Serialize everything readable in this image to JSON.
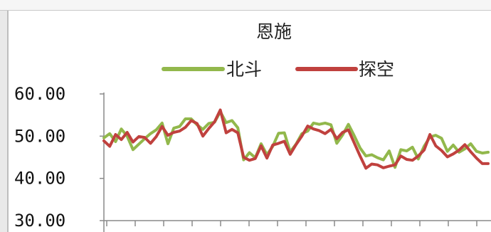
{
  "chart_data": {
    "type": "line",
    "title": "恩施",
    "xlabel": "",
    "ylabel": "",
    "ylim": [
      30,
      60
    ],
    "y_ticks": [
      "60.00",
      "50.00",
      "40.00",
      "30.00"
    ],
    "legend_position": "top",
    "grid": false,
    "series": [
      {
        "name": "北斗",
        "color": "#92b84c",
        "values": [
          49.6,
          50.6,
          48.7,
          51.7,
          50.0,
          46.8,
          48.1,
          49.4,
          50.6,
          51.5,
          53.1,
          48.2,
          51.9,
          52.3,
          54.1,
          54.1,
          52.7,
          51.6,
          53.0,
          53.3,
          55.8,
          53.2,
          53.7,
          52.0,
          44.4,
          46.1,
          44.9,
          48.2,
          45.6,
          47.6,
          50.7,
          50.8,
          46.3,
          48.1,
          50.6,
          51.2,
          53.1,
          52.8,
          53.1,
          52.7,
          48.3,
          50.3,
          52.8,
          50.1,
          47.2,
          45.3,
          45.6,
          44.9,
          44.4,
          46.5,
          42.6,
          46.8,
          46.5,
          47.4,
          44.6,
          47.6,
          49.8,
          50.2,
          49.5,
          46.4,
          47.9,
          46.2,
          47.0,
          48.2,
          46.4,
          46.0,
          46.2
        ]
      },
      {
        "name": "探空",
        "color": "#c0413e",
        "values": [
          48.9,
          47.6,
          50.4,
          49.2,
          50.9,
          48.6,
          49.9,
          49.7,
          48.3,
          49.9,
          52.3,
          50.2,
          50.9,
          51.2,
          52.1,
          53.7,
          53.0,
          50.0,
          51.8,
          53.4,
          56.2,
          50.8,
          51.6,
          50.8,
          45.0,
          44.3,
          44.7,
          47.7,
          44.8,
          47.9,
          48.3,
          48.8,
          45.7,
          48.0,
          50.0,
          52.4,
          51.7,
          51.3,
          50.6,
          51.6,
          49.4,
          50.9,
          51.5,
          48.4,
          45.3,
          42.4,
          43.4,
          43.2,
          42.5,
          42.9,
          43.2,
          45.3,
          44.5,
          44.3,
          45.3,
          46.7,
          50.4,
          47.7,
          46.6,
          45.1,
          45.8,
          46.7,
          48.0,
          46.3,
          44.8,
          43.5,
          43.5
        ]
      }
    ]
  }
}
